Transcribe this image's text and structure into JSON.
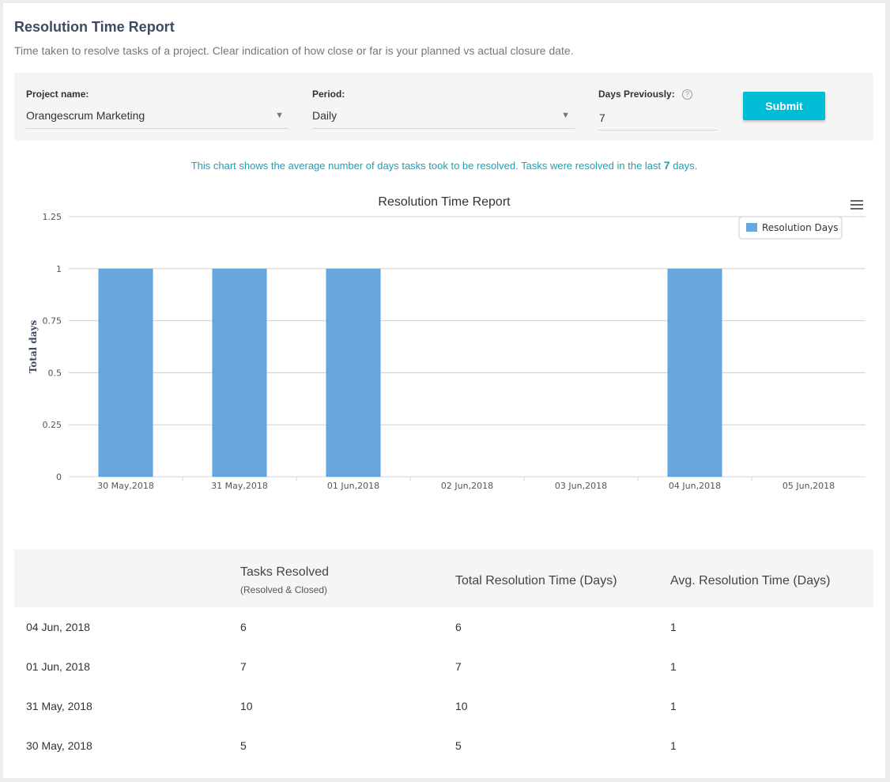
{
  "header": {
    "title": "Resolution Time Report",
    "description": "Time taken to resolve tasks of a project. Clear indication of how close or far is your planned vs actual closure date."
  },
  "filters": {
    "project_label": "Project name:",
    "project_value": "Orangescrum Marketing",
    "period_label": "Period:",
    "period_value": "Daily",
    "days_label": "Days Previously:",
    "days_value": "7",
    "submit_label": "Submit"
  },
  "note": {
    "prefix": "This chart shows the average number of days tasks took to be resolved. Tasks were resolved in the last",
    "days": "7",
    "suffix": "days."
  },
  "chart_data": {
    "type": "bar",
    "title": "Resolution Time Report",
    "ylabel": "Total days",
    "xlabel": "",
    "categories": [
      "30 May,2018",
      "31 May,2018",
      "01 Jun,2018",
      "02 Jun,2018",
      "03 Jun,2018",
      "04 Jun,2018",
      "05 Jun,2018"
    ],
    "series": [
      {
        "name": "Resolution Days",
        "values": [
          1,
          1,
          1,
          0,
          0,
          1,
          0
        ],
        "color": "#67a7dd"
      }
    ],
    "ylim": [
      0,
      1.25
    ],
    "yticks": [
      "0",
      "0.25",
      "0.5",
      "0.75",
      "1",
      "1.25"
    ],
    "grid": true,
    "legend_position": "top-right"
  },
  "table": {
    "headers": {
      "tasks": "Tasks Resolved",
      "tasks_sub": "(Resolved & Closed)",
      "total": "Total Resolution Time (Days)",
      "avg": "Avg. Resolution Time (Days)"
    },
    "rows": [
      {
        "date": "04 Jun, 2018",
        "tasks": "6",
        "total": "6",
        "avg": "1"
      },
      {
        "date": "01 Jun, 2018",
        "tasks": "7",
        "total": "7",
        "avg": "1"
      },
      {
        "date": "31 May, 2018",
        "tasks": "10",
        "total": "10",
        "avg": "1"
      },
      {
        "date": "30 May, 2018",
        "tasks": "5",
        "total": "5",
        "avg": "1"
      }
    ]
  },
  "icons": {
    "menu": "hamburger-menu-icon",
    "help": "help-circle-icon",
    "caret": "caret-down-icon"
  }
}
